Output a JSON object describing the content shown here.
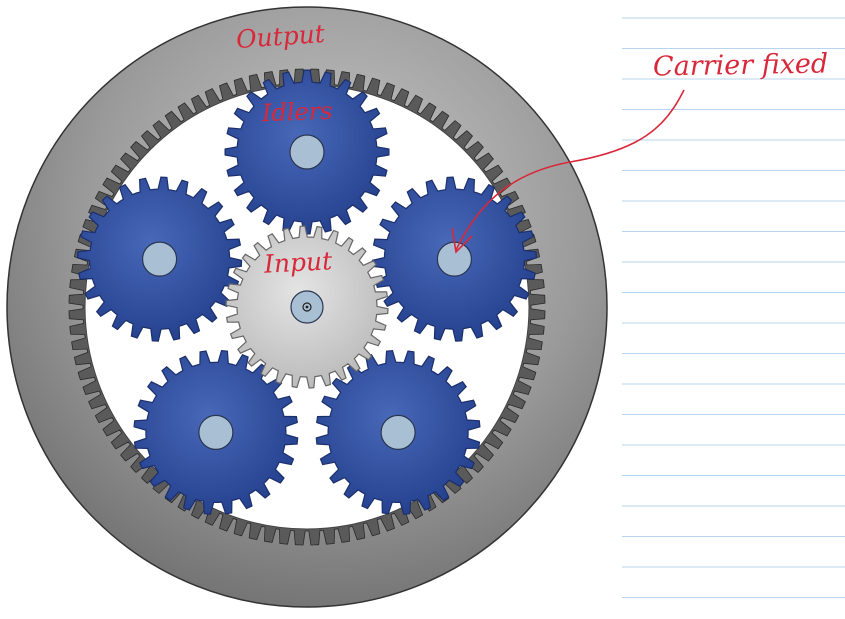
{
  "annotations": {
    "output": "Output",
    "idlers": "Idlers",
    "input": "Input",
    "carrier": "Carrier fixed"
  },
  "gear_train": {
    "ring_gear": {
      "role": "output",
      "teeth": 96
    },
    "sun_gear": {
      "role": "input",
      "teeth": 30
    },
    "idler_gears": {
      "count": 5,
      "teeth": 24
    }
  },
  "colors": {
    "ring": "#8a8a8a",
    "ring_teeth": "#5a5a5a",
    "idler": "#2f4f9e",
    "idler_edge": "#1b2f6b",
    "sun": "#cfcfcf",
    "shaft": "#a9c0d4",
    "annotation": "#d8283a",
    "notebook_lines": "#b9d4ee"
  }
}
